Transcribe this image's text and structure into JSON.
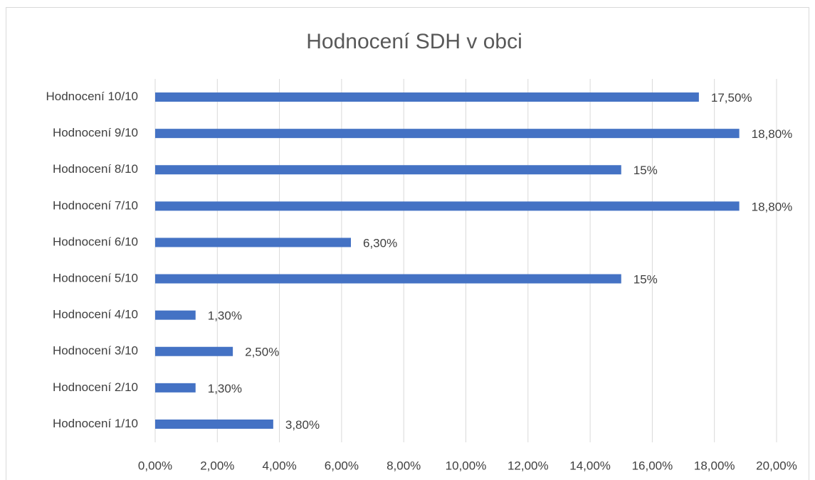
{
  "chart_data": {
    "type": "barh",
    "title": "Hodnocení SDH v obci",
    "categories": [
      "Hodnocení 10/10",
      "Hodnocení 9/10",
      "Hodnocení 8/10",
      "Hodnocení 7/10",
      "Hodnocení 6/10",
      "Hodnocení 5/10",
      "Hodnocení 4/10",
      "Hodnocení 3/10",
      "Hodnocení 2/10",
      "Hodnocení 1/10"
    ],
    "values": [
      17.5,
      18.8,
      15,
      18.8,
      6.3,
      15,
      1.3,
      2.5,
      1.3,
      3.8
    ],
    "value_labels": [
      "17,50%",
      "18,80%",
      "15%",
      "18,80%",
      "6,30%",
      "15%",
      "1,30%",
      "2,50%",
      "1,30%",
      "3,80%"
    ],
    "color": "#4472c4",
    "xlim": [
      0,
      20
    ],
    "xticks": [
      {
        "value": 0,
        "label": "0,00%"
      },
      {
        "value": 2,
        "label": "2,00%"
      },
      {
        "value": 4,
        "label": "4,00%"
      },
      {
        "value": 6,
        "label": "6,00%"
      },
      {
        "value": 8,
        "label": "8,00%"
      },
      {
        "value": 10,
        "label": "10,00%"
      },
      {
        "value": 12,
        "label": "12,00%"
      },
      {
        "value": 14,
        "label": "14,00%"
      },
      {
        "value": 16,
        "label": "16,00%"
      },
      {
        "value": 18,
        "label": "18,00%"
      },
      {
        "value": 20,
        "label": "20,00%"
      }
    ],
    "grid": true
  }
}
